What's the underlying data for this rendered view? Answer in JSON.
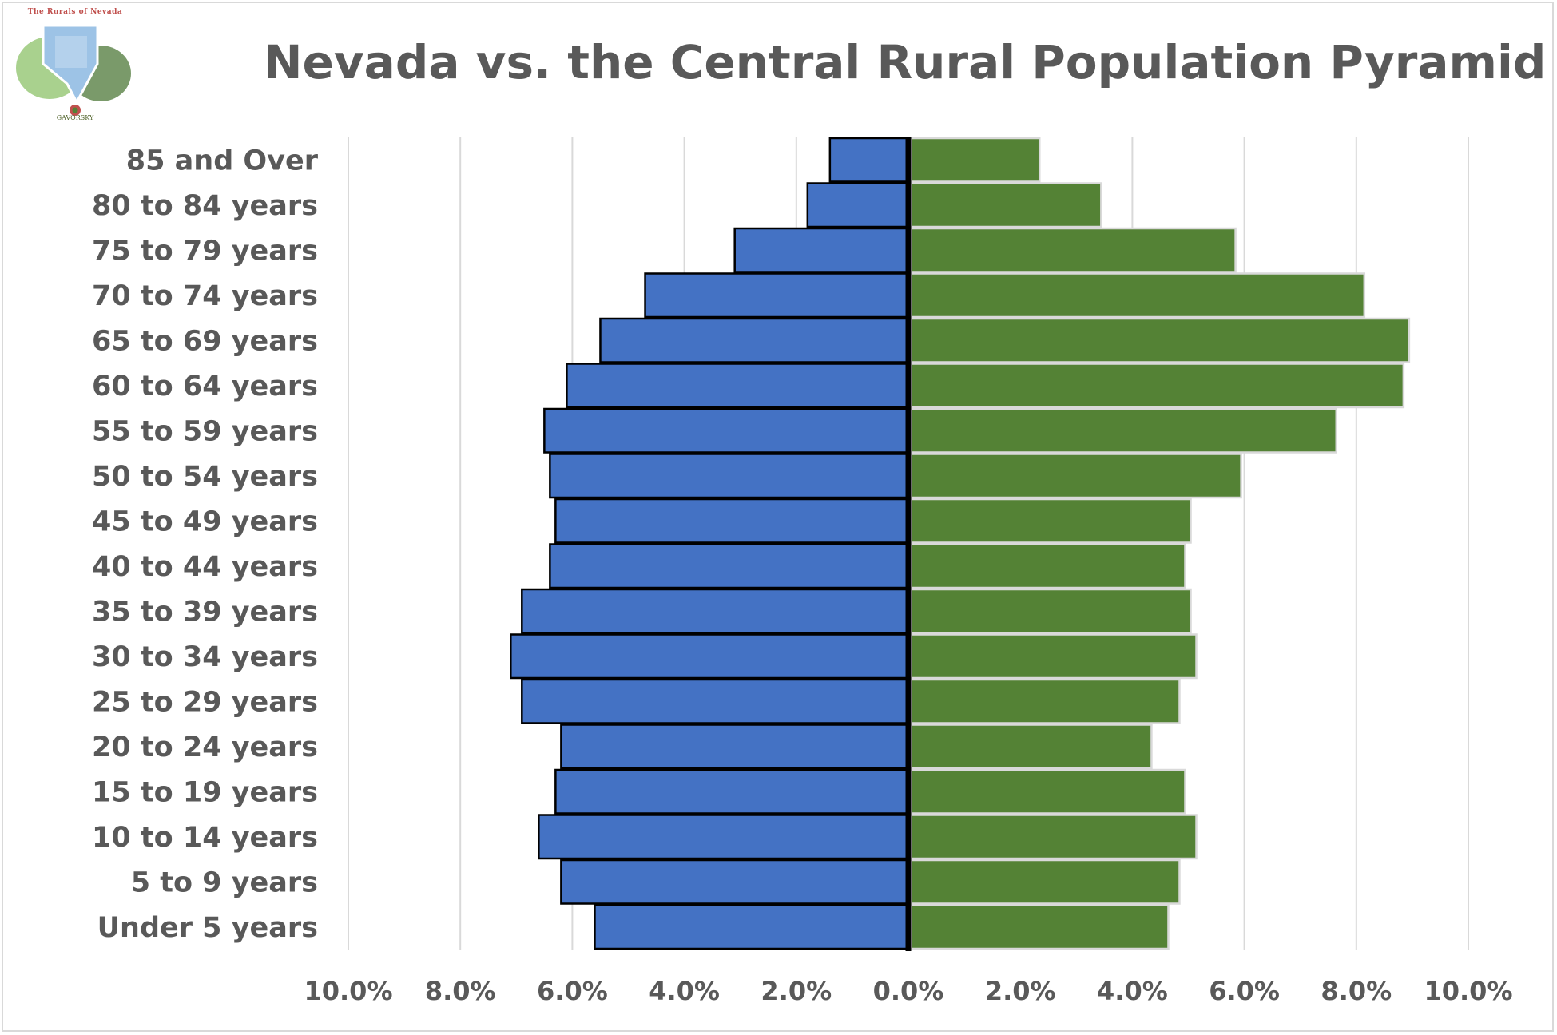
{
  "chart_data": {
    "type": "bar",
    "orientation": "horizontal",
    "title": "Nevada vs. the Central Rural Population Pyramid",
    "categories": [
      "85 and Over",
      "80 to 84 years",
      "75 to 79 years",
      "70 to 74 years",
      "65 to 69 years",
      "60 to 64 years",
      "55 to 59 years",
      "50 to 54 years",
      "45 to 49 years",
      "40 to 44 years",
      "35 to 39 years",
      "30 to 34 years",
      "25 to 29 years",
      "20 to 24 years",
      "15 to 19 years",
      "10 to 14 years",
      "5 to 9 years",
      "Under 5 years"
    ],
    "series": [
      {
        "side": "left",
        "color": "#4472c4",
        "values": [
          1.4,
          1.8,
          3.1,
          4.7,
          5.5,
          6.1,
          6.5,
          6.4,
          6.3,
          6.4,
          6.9,
          7.1,
          6.9,
          6.2,
          6.3,
          6.6,
          6.2,
          5.6
        ]
      },
      {
        "side": "right",
        "color": "#548235",
        "values": [
          2.3,
          3.4,
          5.8,
          8.1,
          8.9,
          8.8,
          7.6,
          5.9,
          5.0,
          4.9,
          5.0,
          5.1,
          4.8,
          4.3,
          4.9,
          5.1,
          4.8,
          4.6
        ]
      }
    ],
    "x_ticks": [
      "10.0%",
      "8.0%",
      "6.0%",
      "4.0%",
      "2.0%",
      "0.0%",
      "2.0%",
      "4.0%",
      "6.0%",
      "8.0%",
      "10.0%"
    ],
    "xlim": [
      -10,
      10
    ],
    "grid": true,
    "legend": "none"
  },
  "logo": {
    "caption": "The Rurals of Nevada",
    "name": "GAVORSKY"
  }
}
